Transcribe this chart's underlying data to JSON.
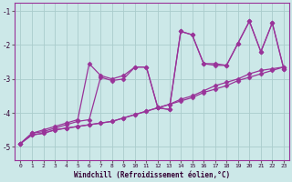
{
  "xlabel": "Windchill (Refroidissement éolien,°C)",
  "bg_color": "#cce8e8",
  "line_color": "#993399",
  "grid_color": "#aacccc",
  "xlim": [
    -0.5,
    23.5
  ],
  "ylim": [
    -5.4,
    -0.75
  ],
  "yticks": [
    -5,
    -4,
    -3,
    -2,
    -1
  ],
  "xticks": [
    0,
    1,
    2,
    3,
    4,
    5,
    6,
    7,
    8,
    9,
    10,
    11,
    12,
    13,
    14,
    15,
    16,
    17,
    18,
    19,
    20,
    21,
    22,
    23
  ],
  "series": [
    {
      "x": [
        0,
        1,
        2,
        3,
        4,
        5,
        6,
        7,
        8,
        9,
        10,
        11,
        12,
        13,
        14,
        15,
        16,
        17,
        18,
        19,
        20,
        21,
        22,
        23
      ],
      "y": [
        -4.9,
        -4.6,
        -4.5,
        -4.4,
        -4.3,
        -4.2,
        -2.55,
        -2.9,
        -3.0,
        -2.9,
        -2.65,
        -2.65,
        -3.85,
        -3.9,
        -1.6,
        -1.7,
        -2.55,
        -2.55,
        -2.6,
        -1.95,
        -1.3,
        -2.2,
        -1.35,
        -2.7
      ]
    },
    {
      "x": [
        0,
        1,
        2,
        3,
        4,
        5,
        6,
        7,
        8,
        9,
        10,
        11,
        12,
        13,
        14,
        15,
        16,
        17,
        18,
        19,
        20,
        21,
        22,
        23
      ],
      "y": [
        -4.9,
        -4.6,
        -4.55,
        -4.45,
        -4.35,
        -4.25,
        -4.2,
        -2.95,
        -3.05,
        -3.0,
        -2.65,
        -2.65,
        -3.85,
        -3.9,
        -1.6,
        -1.7,
        -2.55,
        -2.6,
        -2.6,
        -1.95,
        -1.3,
        -2.2,
        -1.35,
        -2.7
      ]
    },
    {
      "x": [
        0,
        1,
        2,
        3,
        4,
        5,
        6,
        7,
        8,
        9,
        10,
        11,
        12,
        13,
        14,
        15,
        16,
        17,
        18,
        19,
        20,
        21,
        22,
        23
      ],
      "y": [
        -4.9,
        -4.65,
        -4.6,
        -4.5,
        -4.45,
        -4.4,
        -4.35,
        -4.3,
        -4.25,
        -4.15,
        -4.05,
        -3.95,
        -3.85,
        -3.75,
        -3.6,
        -3.5,
        -3.35,
        -3.2,
        -3.1,
        -3.0,
        -2.85,
        -2.75,
        -2.7,
        -2.65
      ]
    },
    {
      "x": [
        0,
        1,
        2,
        3,
        4,
        5,
        6,
        7,
        8,
        9,
        10,
        11,
        12,
        13,
        14,
        15,
        16,
        17,
        18,
        19,
        20,
        21,
        22,
        23
      ],
      "y": [
        -4.9,
        -4.65,
        -4.6,
        -4.5,
        -4.45,
        -4.4,
        -4.35,
        -4.3,
        -4.25,
        -4.15,
        -4.05,
        -3.95,
        -3.85,
        -3.75,
        -3.65,
        -3.55,
        -3.4,
        -3.3,
        -3.2,
        -3.05,
        -2.95,
        -2.85,
        -2.75,
        -2.65
      ]
    }
  ]
}
